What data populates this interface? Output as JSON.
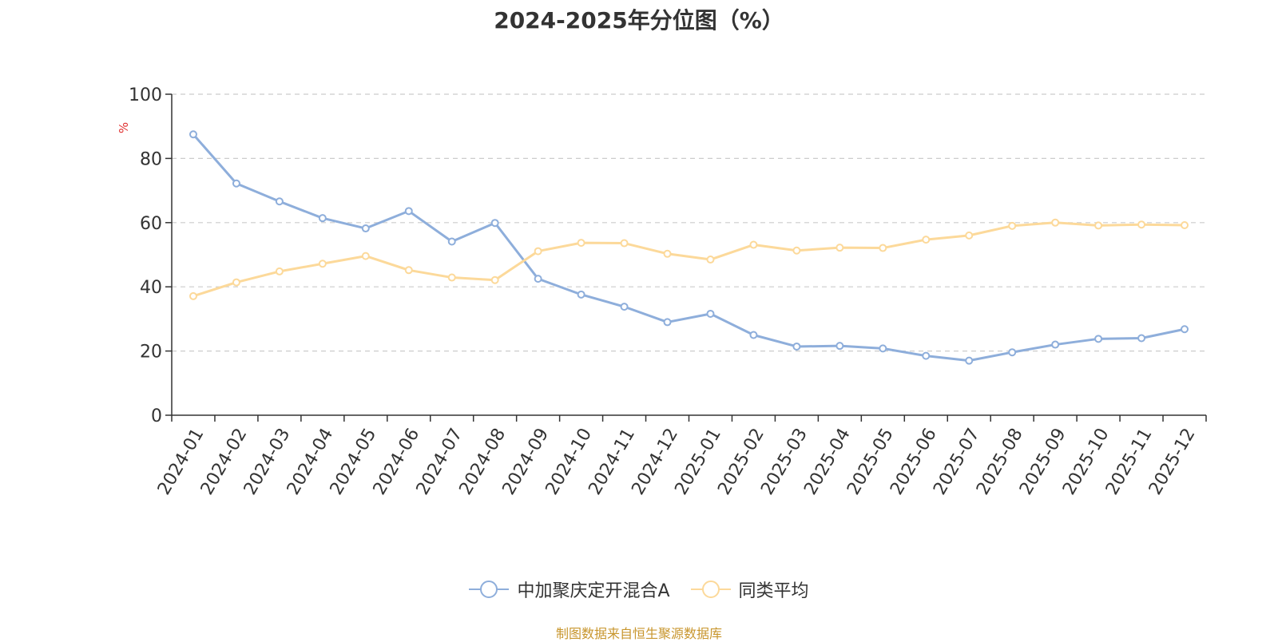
{
  "chart_data": {
    "type": "line",
    "title": "2024-2025年分位图（%）",
    "ylabel": "%",
    "xlabel": "",
    "ylim": [
      0,
      100
    ],
    "yticks": [
      0,
      20,
      40,
      60,
      80,
      100
    ],
    "grid": true,
    "legend_position": "bottom-center",
    "categories": [
      "2024-01",
      "2024-02",
      "2024-03",
      "2024-04",
      "2024-05",
      "2024-06",
      "2024-07",
      "2024-08",
      "2024-09",
      "2024-10",
      "2024-11",
      "2024-12",
      "2025-01",
      "2025-02",
      "2025-03",
      "2025-04",
      "2025-05",
      "2025-06",
      "2025-07",
      "2025-08",
      "2025-09",
      "2025-10",
      "2025-11",
      "2025-12"
    ],
    "series": [
      {
        "name": "中加聚庆定开混合A",
        "color": "#8eaedb",
        "values": [
          87.5,
          72.2,
          66.6,
          61.4,
          58.2,
          63.6,
          54.1,
          59.9,
          42.5,
          37.6,
          33.8,
          29.0,
          31.6,
          25.0,
          21.4,
          21.6,
          20.8,
          18.5,
          17.0,
          19.6,
          22.0,
          23.8,
          24.0,
          26.8
        ]
      },
      {
        "name": "同类平均",
        "color": "#fcd99a",
        "values": [
          37.1,
          41.4,
          44.8,
          47.2,
          49.6,
          45.2,
          42.9,
          42.1,
          51.1,
          53.7,
          53.6,
          50.3,
          48.5,
          53.1,
          51.3,
          52.2,
          52.1,
          54.7,
          56.0,
          59.0,
          60.0,
          59.1,
          59.4,
          59.2
        ]
      }
    ]
  },
  "source": "制图数据来自恒生聚源数据库"
}
